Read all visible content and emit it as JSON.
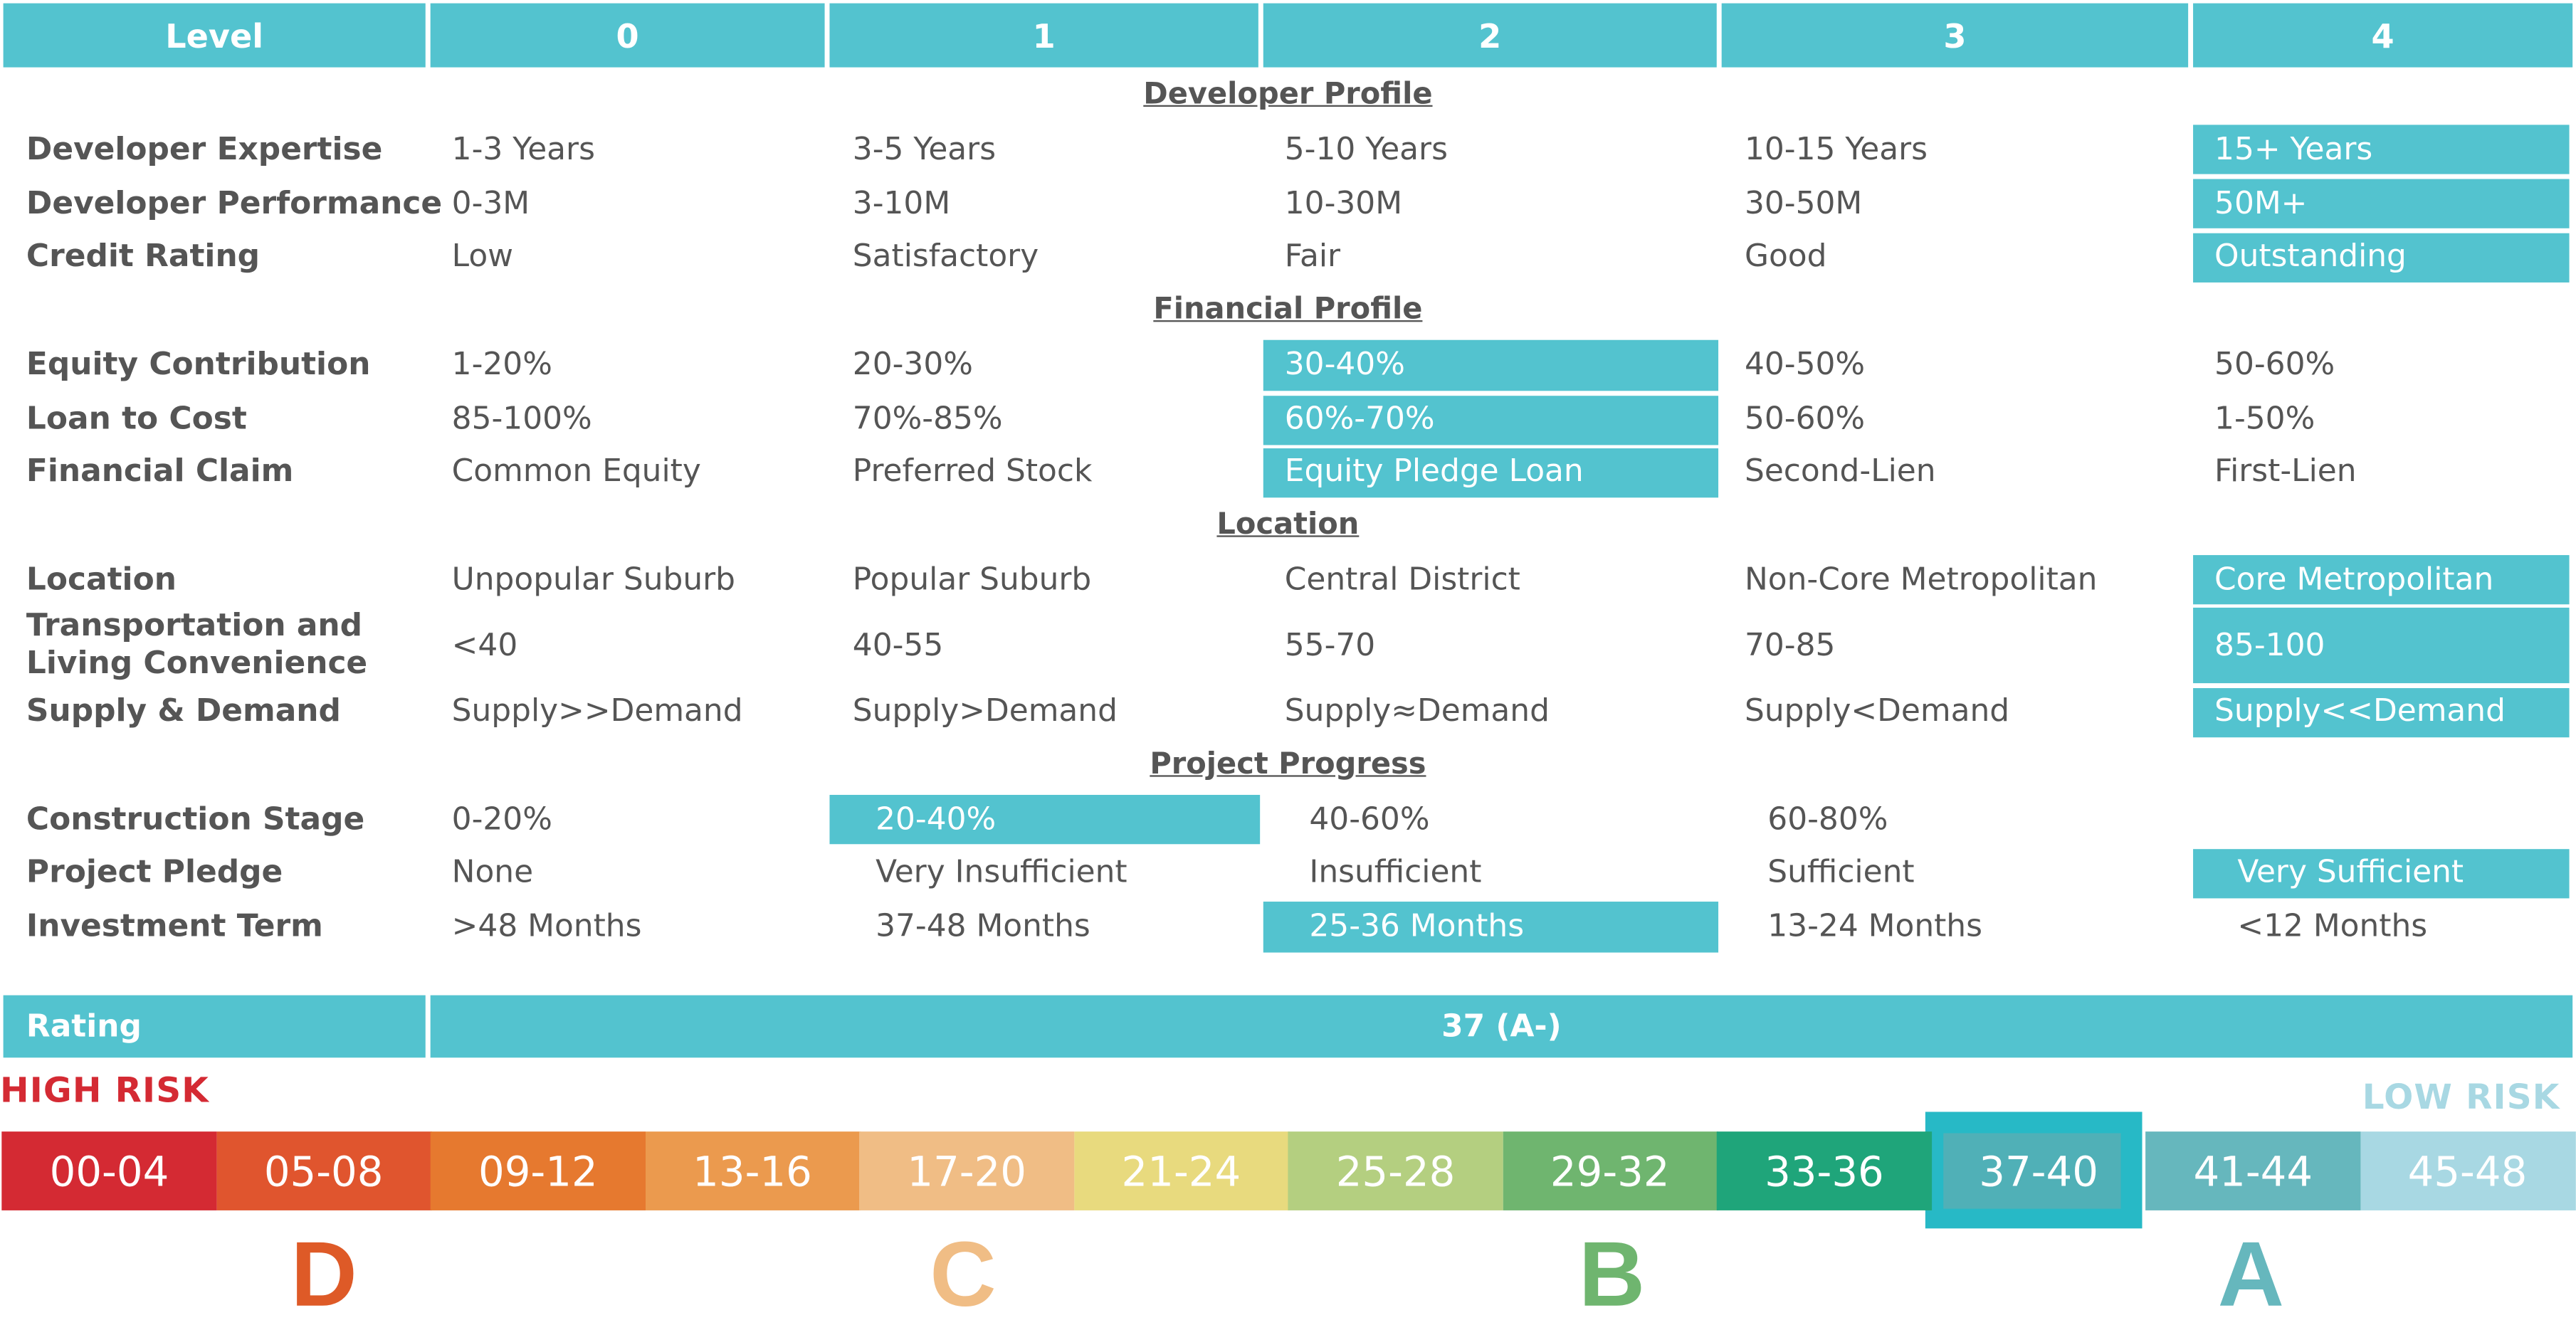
{
  "header": {
    "level_label": "Level",
    "levels": [
      "0",
      "1",
      "2",
      "3",
      "4"
    ]
  },
  "sections": {
    "developer_profile": "Developer Profile",
    "financial_profile": "Financial Profile",
    "location": "Location",
    "project_progress": "Project Progress"
  },
  "rows": [
    {
      "label": "Developer Expertise",
      "values": [
        "1-3 Years",
        "3-5 Years",
        "5-10 Years",
        "10-15 Years",
        "15+ Years"
      ],
      "selected_level": 4
    },
    {
      "label": "Developer Performance",
      "values": [
        "0-3M",
        "3-10M",
        "10-30M",
        "30-50M",
        "50M+"
      ],
      "selected_level": 4
    },
    {
      "label": "Credit Rating",
      "values": [
        "Low",
        "Satisfactory",
        "Fair",
        "Good",
        "Outstanding"
      ],
      "selected_level": 4
    },
    {
      "label": "Equity Contribution",
      "values": [
        "1-20%",
        "20-30%",
        "30-40%",
        "40-50%",
        "50-60%"
      ],
      "selected_level": 2
    },
    {
      "label": "Loan to Cost",
      "values": [
        "85-100%",
        "70%-85%",
        "60%-70%",
        "50-60%",
        "1-50%"
      ],
      "selected_level": 2
    },
    {
      "label": "Financial Claim",
      "values": [
        "Common Equity",
        "Preferred Stock",
        "Equity Pledge Loan",
        "Second-Lien",
        "First-Lien"
      ],
      "selected_level": 2
    },
    {
      "label": "Location",
      "values": [
        "Unpopular Suburb",
        "Popular Suburb",
        "Central District",
        "Non-Core Metropolitan",
        "Core Metropolitan"
      ],
      "selected_level": 4
    },
    {
      "label_line1": "Transportation and",
      "label_line2": "Living Convenience",
      "values": [
        "<40",
        "40-55",
        "55-70",
        "70-85",
        "85-100"
      ],
      "selected_level": 4
    },
    {
      "label": "Supply & Demand",
      "values": [
        "Supply>>Demand",
        "Supply>Demand",
        "Supply≈Demand",
        "Supply<Demand",
        "Supply<<Demand"
      ],
      "selected_level": 4
    },
    {
      "label": "Construction Stage",
      "values": [
        "0-20%",
        "20-40%",
        "40-60%",
        "60-80%",
        ""
      ],
      "selected_level": 1
    },
    {
      "label": "Project Pledge",
      "values": [
        "None",
        "Very Insufficient",
        "Insufficient",
        "Sufficient",
        "Very Sufficient"
      ],
      "selected_level": 4
    },
    {
      "label": "Investment Term",
      "values": [
        ">48 Months",
        "37-48 Months",
        "25-36 Months",
        "13-24 Months",
        "<12 Months"
      ],
      "selected_level": 2
    }
  ],
  "rating": {
    "label": "Rating",
    "value": "37 (A-)"
  },
  "scale": {
    "high_risk": "HIGH RISK",
    "low_risk": "LOW RISK",
    "selected_index": 9,
    "segments": [
      {
        "label": "00-04",
        "color": "#d42a33"
      },
      {
        "label": "05-08",
        "color": "#e0552e"
      },
      {
        "label": "09-12",
        "color": "#e6792f"
      },
      {
        "label": "13-16",
        "color": "#eb9a4e"
      },
      {
        "label": "17-20",
        "color": "#f0bd85"
      },
      {
        "label": "21-24",
        "color": "#e8da7e"
      },
      {
        "label": "25-28",
        "color": "#b4cf80"
      },
      {
        "label": "29-32",
        "color": "#6fb56f"
      },
      {
        "label": "33-36",
        "color": "#1fa57a"
      },
      {
        "label": "37-40",
        "color": "#50b0b7"
      },
      {
        "label": "41-44",
        "color": "#66b7bd"
      },
      {
        "label": "45-48",
        "color": "#a8d8e3"
      }
    ],
    "grades": [
      {
        "letter": "D",
        "color": "#de5a27"
      },
      {
        "letter": "C",
        "color": "#f0bd85"
      },
      {
        "letter": "B",
        "color": "#6fb56f"
      },
      {
        "letter": "A",
        "color": "#66b7bd"
      }
    ]
  },
  "colors": {
    "accent": "#53c3cf",
    "high_risk": "#d42a33",
    "low_risk": "#a8d8e3",
    "selected_frame": "#27b9c6"
  }
}
